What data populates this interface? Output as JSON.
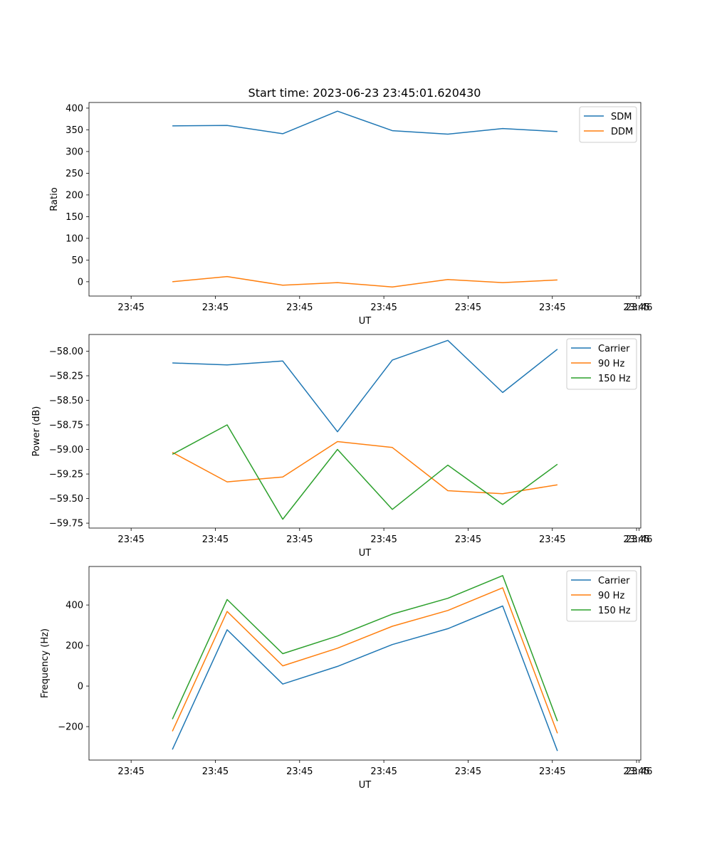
{
  "title": "Start time: 2023-06-23 23:45:01.620430",
  "chart_data": [
    {
      "type": "line",
      "xlabel": "UT",
      "ylabel": "Ratio",
      "x_tick_labels": [
        "23:45",
        "23:45",
        "23:45",
        "23:45",
        "23:45",
        "23:45",
        "23:45",
        "23:46"
      ],
      "x_tick_positions": [
        0,
        1,
        2,
        3,
        4,
        5,
        6,
        6.03
      ],
      "xlim": [
        -0.5,
        6.05
      ],
      "ylim": [
        -33,
        413
      ],
      "y_ticks": [
        0,
        50,
        100,
        150,
        200,
        250,
        300,
        350,
        400
      ],
      "y_tick_labels": [
        "0",
        "50",
        "100",
        "150",
        "200",
        "250",
        "300",
        "350",
        "400"
      ],
      "x": [
        0.49,
        1.14,
        1.8,
        2.45,
        3.1,
        3.76,
        4.41,
        5.06
      ],
      "legend_position": "top-right",
      "series": [
        {
          "name": "SDM",
          "color": "#1f77b4",
          "values": [
            359,
            360,
            341,
            393,
            348,
            340,
            353,
            346
          ]
        },
        {
          "name": "DDM",
          "color": "#ff7f0e",
          "values": [
            0,
            12,
            -8,
            -2,
            -12,
            5,
            -2,
            4
          ]
        }
      ]
    },
    {
      "type": "line",
      "xlabel": "UT",
      "ylabel": "Power (dB)",
      "x_tick_labels": [
        "23:45",
        "23:45",
        "23:45",
        "23:45",
        "23:45",
        "23:45",
        "23:45",
        "23:46"
      ],
      "x_tick_positions": [
        0,
        1,
        2,
        3,
        4,
        5,
        6,
        6.03
      ],
      "xlim": [
        -0.5,
        6.05
      ],
      "ylim": [
        -59.8,
        -57.83
      ],
      "y_ticks": [
        -59.75,
        -59.5,
        -59.25,
        -59.0,
        -58.75,
        -58.5,
        -58.25,
        -58.0
      ],
      "y_tick_labels": [
        "−59.75",
        "−59.50",
        "−59.25",
        "−59.00",
        "−58.75",
        "−58.50",
        "−58.25",
        "−58.00"
      ],
      "x": [
        0.49,
        1.14,
        1.8,
        2.45,
        3.1,
        3.76,
        4.41,
        5.06
      ],
      "legend_position": "top-right",
      "series": [
        {
          "name": "Carrier",
          "color": "#1f77b4",
          "values": [
            -58.12,
            -58.14,
            -58.1,
            -58.82,
            -58.09,
            -57.89,
            -58.42,
            -57.98
          ]
        },
        {
          "name": "90 Hz",
          "color": "#ff7f0e",
          "values": [
            -59.03,
            -59.33,
            -59.28,
            -58.92,
            -58.98,
            -59.42,
            -59.45,
            -59.36
          ]
        },
        {
          "name": "150 Hz",
          "color": "#2ca02c",
          "values": [
            -59.05,
            -58.75,
            -59.71,
            -59.0,
            -59.61,
            -59.16,
            -59.56,
            -59.15
          ]
        }
      ]
    },
    {
      "type": "line",
      "xlabel": "UT",
      "ylabel": "Frequency (Hz)",
      "x_tick_labels": [
        "23:45",
        "23:45",
        "23:45",
        "23:45",
        "23:45",
        "23:45",
        "23:45",
        "23:46"
      ],
      "x_tick_positions": [
        0,
        1,
        2,
        3,
        4,
        5,
        6,
        6.03
      ],
      "xlim": [
        -0.5,
        6.05
      ],
      "ylim": [
        -365,
        590
      ],
      "y_ticks": [
        -200,
        0,
        200,
        400
      ],
      "y_tick_labels": [
        "−200",
        "0",
        "200",
        "400"
      ],
      "x": [
        0.49,
        1.14,
        1.8,
        2.45,
        3.1,
        3.76,
        4.41,
        5.06
      ],
      "legend_position": "top-right",
      "series": [
        {
          "name": "Carrier",
          "color": "#1f77b4",
          "values": [
            -313,
            278,
            10,
            97,
            205,
            283,
            395,
            -320
          ]
        },
        {
          "name": "90 Hz",
          "color": "#ff7f0e",
          "values": [
            -223,
            368,
            100,
            187,
            295,
            373,
            485,
            -233
          ]
        },
        {
          "name": "150 Hz",
          "color": "#2ca02c",
          "values": [
            -163,
            427,
            160,
            247,
            355,
            433,
            545,
            -173
          ]
        }
      ]
    }
  ]
}
